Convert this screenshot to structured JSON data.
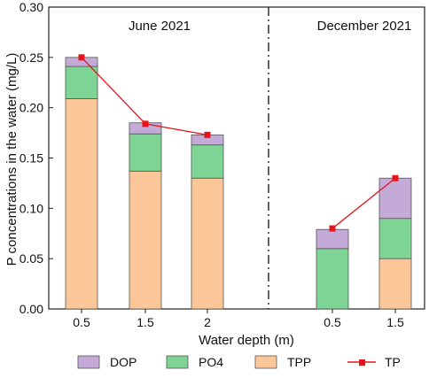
{
  "chart_data": {
    "type": "bar",
    "stacked": true,
    "ylabel": "P concentrations in the water (mg/L)",
    "xlabel": "Water depth (m)",
    "ylim": [
      0,
      0.3
    ],
    "yticks": [
      "0.00",
      "0.05",
      "0.10",
      "0.15",
      "0.20",
      "0.25",
      "0.30"
    ],
    "groups": [
      {
        "label": "June 2021",
        "categories": [
          "0.5",
          "1.5",
          "2"
        ]
      },
      {
        "label": "December 2021",
        "categories": [
          "0.5",
          "1.5"
        ]
      }
    ],
    "categories": [
      "0.5",
      "1.5",
      "2",
      "0.5",
      "1.5"
    ],
    "series": [
      {
        "name": "TPP",
        "values": [
          0.209,
          0.137,
          0.13,
          0.0,
          0.05
        ],
        "color": "#FBC799"
      },
      {
        "name": "PO4",
        "values": [
          0.032,
          0.037,
          0.033,
          0.06,
          0.04
        ],
        "color": "#7ED494"
      },
      {
        "name": "DOP",
        "values": [
          0.009,
          0.011,
          0.01,
          0.019,
          0.04
        ],
        "color": "#C4AAD7"
      }
    ],
    "line_series": {
      "name": "TP",
      "segments": [
        [
          0.25,
          0.184,
          0.173
        ],
        [
          0.08,
          0.13
        ]
      ],
      "color": "#E8141B"
    },
    "legend": [
      "DOP",
      "PO4",
      "TPP",
      "TP"
    ],
    "legend_position": "bottom",
    "grid": false
  }
}
